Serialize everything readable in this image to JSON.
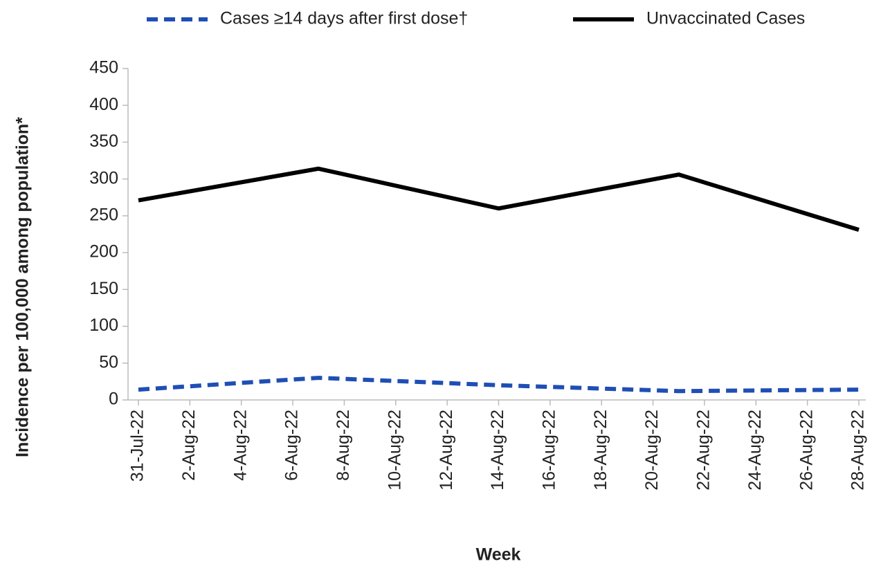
{
  "chart_data": {
    "type": "line",
    "x_label": "Week",
    "y_label": "Incidence per 100,000 among population*",
    "x": [
      "2022-07-31",
      "2022-08-07",
      "2022-08-14",
      "2022-08-21",
      "2022-08-28"
    ],
    "xticks": [
      {
        "value": "2022-07-31",
        "label": "31-Jul-22"
      },
      {
        "value": "2022-08-02",
        "label": "2-Aug-22"
      },
      {
        "value": "2022-08-04",
        "label": "4-Aug-22"
      },
      {
        "value": "2022-08-06",
        "label": "6-Aug-22"
      },
      {
        "value": "2022-08-08",
        "label": "8-Aug-22"
      },
      {
        "value": "2022-08-10",
        "label": "10-Aug-22"
      },
      {
        "value": "2022-08-12",
        "label": "12-Aug-22"
      },
      {
        "value": "2022-08-14",
        "label": "14-Aug-22"
      },
      {
        "value": "2022-08-16",
        "label": "16-Aug-22"
      },
      {
        "value": "2022-08-18",
        "label": "18-Aug-22"
      },
      {
        "value": "2022-08-20",
        "label": "20-Aug-22"
      },
      {
        "value": "2022-08-22",
        "label": "22-Aug-22"
      },
      {
        "value": "2022-08-24",
        "label": "24-Aug-22"
      },
      {
        "value": "2022-08-26",
        "label": "26-Aug-22"
      },
      {
        "value": "2022-08-28",
        "label": "28-Aug-22"
      }
    ],
    "xlim": [
      "2022-07-31",
      "2022-08-28"
    ],
    "ylim": [
      0,
      450
    ],
    "yticks": [
      0,
      50,
      100,
      150,
      200,
      250,
      300,
      350,
      400,
      450
    ],
    "legend": "top",
    "series": [
      {
        "name": "Cases ≥14 days after first dose†",
        "color": "#1f4fb5",
        "dashed": true,
        "values": [
          14,
          30,
          20,
          12,
          14
        ]
      },
      {
        "name": "Unvaccinated Cases",
        "color": "#000000",
        "dashed": false,
        "values": [
          271,
          314,
          260,
          306,
          231
        ]
      }
    ]
  }
}
